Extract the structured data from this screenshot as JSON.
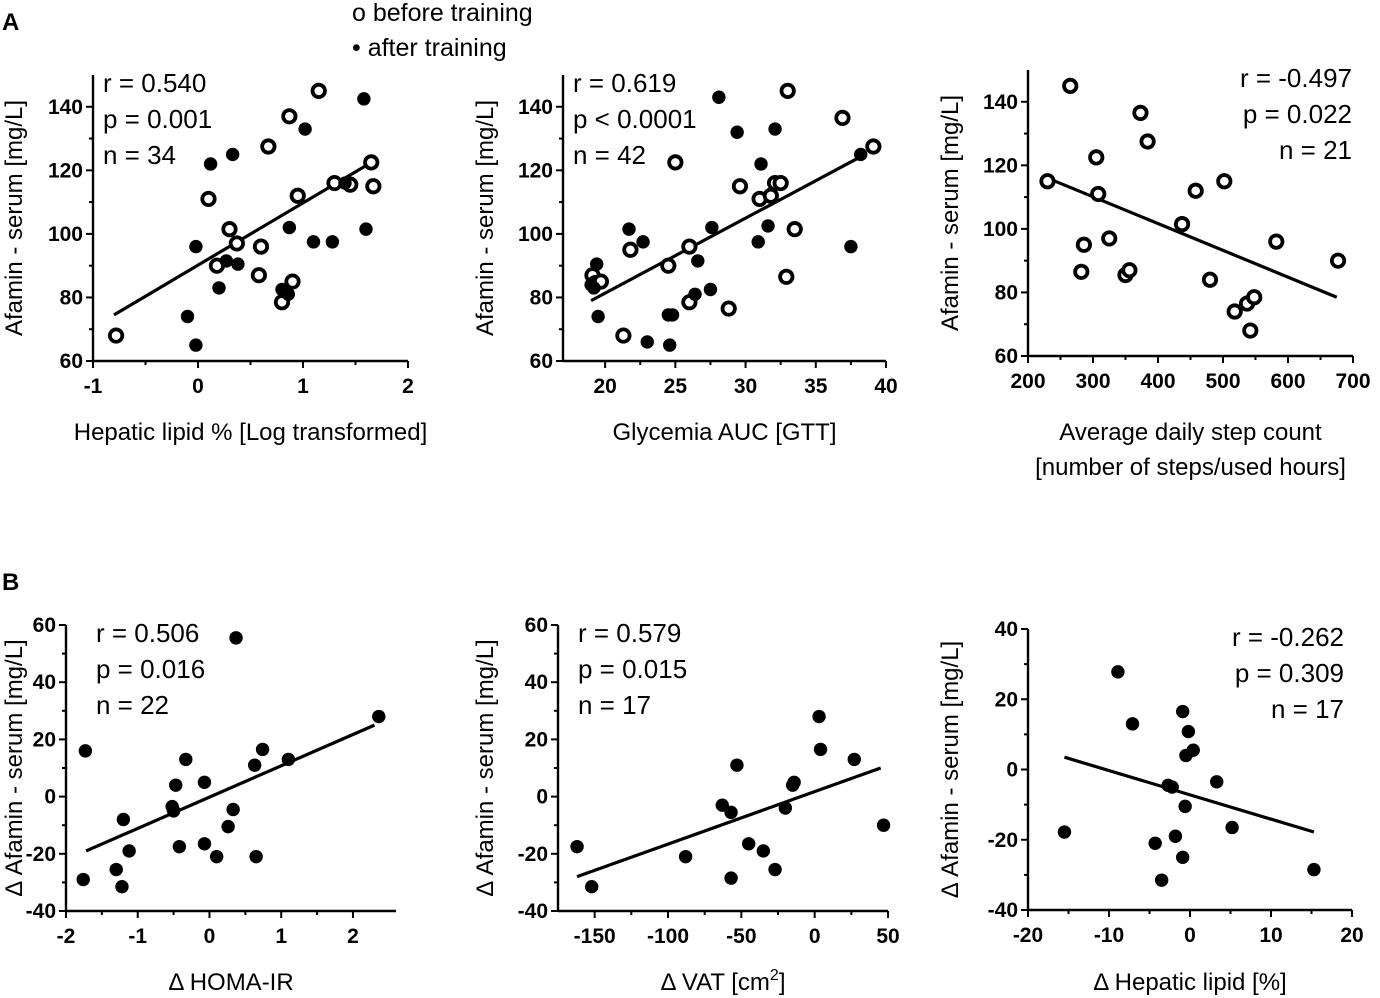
{
  "figure": {
    "panel_labels": [
      "A",
      "B"
    ],
    "legend": {
      "before": "o before training",
      "after": "• after training"
    }
  },
  "chart_data": [
    {
      "id": "a1",
      "type": "scatter",
      "xlabel": "Hepatic lipid % [Log transformed]",
      "ylabel": "Afamin - serum [mg/L]",
      "xlim": [
        -1,
        2
      ],
      "ylim": [
        60,
        150
      ],
      "xticks": [
        "-1",
        "0",
        "1",
        "2"
      ],
      "yticks": [
        "60",
        "80",
        "100",
        "120",
        "140"
      ],
      "stats": [
        "r = 0.540",
        "p = 0.001",
        "n = 34"
      ],
      "regression": [
        [
          -0.8,
          74.5
        ],
        [
          1.6,
          121.5
        ]
      ],
      "series": [
        {
          "name": "before training",
          "marker": "open",
          "points": [
            [
              -0.78,
              68
            ],
            [
              0.1,
              111
            ],
            [
              0.3,
              101.5
            ],
            [
              0.37,
              97
            ],
            [
              0.67,
              127.5
            ],
            [
              0.87,
              137
            ],
            [
              1.15,
              145
            ],
            [
              0.18,
              90
            ],
            [
              0.58,
              87
            ],
            [
              0.6,
              96
            ],
            [
              0.8,
              78.5
            ],
            [
              0.9,
              85
            ],
            [
              0.95,
              112
            ],
            [
              1.3,
              116
            ],
            [
              1.45,
              115.5
            ],
            [
              1.65,
              122.5
            ],
            [
              1.67,
              115
            ]
          ]
        },
        {
          "name": "after training",
          "marker": "filled",
          "points": [
            [
              -0.1,
              74
            ],
            [
              -0.02,
              96
            ],
            [
              -0.02,
              65
            ],
            [
              0.12,
              122
            ],
            [
              0.33,
              125
            ],
            [
              0.2,
              83
            ],
            [
              0.38,
              90.5
            ],
            [
              0.27,
              91.5
            ],
            [
              0.8,
              82.5
            ],
            [
              0.86,
              81
            ],
            [
              0.87,
              102
            ],
            [
              1.02,
              133
            ],
            [
              1.1,
              97.5
            ],
            [
              1.28,
              97.5
            ],
            [
              1.58,
              142.5
            ],
            [
              1.6,
              101.5
            ],
            [
              1.4,
              116
            ]
          ]
        }
      ]
    },
    {
      "id": "a2",
      "type": "scatter",
      "xlabel": "Glycemia AUC [GTT]",
      "ylabel": "Afamin - serum [mg/L]",
      "xlim": [
        17,
        40
      ],
      "ylim": [
        60,
        150
      ],
      "xticks": [
        "20",
        "25",
        "30",
        "35",
        "40"
      ],
      "yticks": [
        "60",
        "80",
        "100",
        "120",
        "140"
      ],
      "stats": [
        "r = 0.619",
        "p < 0.0001",
        "n = 42"
      ],
      "regression": [
        [
          19,
          79
        ],
        [
          38.5,
          125
        ]
      ],
      "series": [
        {
          "name": "before training",
          "marker": "open",
          "points": [
            [
              19.1,
              87
            ],
            [
              19.3,
              84.5
            ],
            [
              19.7,
              85
            ],
            [
              21.3,
              68
            ],
            [
              21.8,
              95
            ],
            [
              24.5,
              90
            ],
            [
              25.0,
              122.5
            ],
            [
              26.0,
              96
            ],
            [
              26.0,
              78.5
            ],
            [
              28.8,
              76.5
            ],
            [
              29.6,
              115
            ],
            [
              31.0,
              111
            ],
            [
              31.8,
              112
            ],
            [
              32.1,
              116
            ],
            [
              32.5,
              116
            ],
            [
              32.9,
              86.5
            ],
            [
              33.0,
              145
            ],
            [
              33.5,
              101.5
            ],
            [
              36.9,
              136.5
            ],
            [
              39.1,
              127.5
            ]
          ]
        },
        {
          "name": "after training",
          "marker": "filled",
          "points": [
            [
              19.0,
              84
            ],
            [
              19.2,
              83
            ],
            [
              19.4,
              90.5
            ],
            [
              19.5,
              74
            ],
            [
              21.7,
              101.5
            ],
            [
              22.7,
              97.5
            ],
            [
              23.0,
              66
            ],
            [
              24.5,
              74.5
            ],
            [
              24.8,
              74.5
            ],
            [
              24.6,
              65
            ],
            [
              26.4,
              81
            ],
            [
              26.6,
              91.5
            ],
            [
              27.5,
              82.5
            ],
            [
              27.6,
              102
            ],
            [
              28.1,
              143
            ],
            [
              29.4,
              132
            ],
            [
              30.9,
              97.5
            ],
            [
              31.1,
              122
            ],
            [
              31.6,
              102.5
            ],
            [
              32.1,
              133
            ],
            [
              37.5,
              96
            ],
            [
              38.2,
              125
            ]
          ]
        }
      ]
    },
    {
      "id": "a3",
      "type": "scatter",
      "xlabel_lines": [
        "Average daily step count",
        "[number of steps/used hours]"
      ],
      "ylabel": "Afamin - serum [mg/L]",
      "xlim": [
        200,
        700
      ],
      "ylim": [
        60,
        150
      ],
      "xticks": [
        "200",
        "300",
        "400",
        "500",
        "600",
        "700"
      ],
      "yticks": [
        "60",
        "80",
        "100",
        "120",
        "140"
      ],
      "stats": [
        "r = -0.497",
        "p = 0.022",
        "n = 21"
      ],
      "regression": [
        [
          230,
          116
        ],
        [
          675,
          78.5
        ]
      ],
      "series": [
        {
          "name": "before training",
          "marker": "open",
          "points": [
            [
              230,
              115
            ],
            [
              265,
              145
            ],
            [
              282,
              86.5
            ],
            [
              286,
              95
            ],
            [
              305,
              122.5
            ],
            [
              308,
              111
            ],
            [
              325,
              97
            ],
            [
              350,
              85.5
            ],
            [
              356,
              87
            ],
            [
              373,
              136.5
            ],
            [
              384,
              127.5
            ],
            [
              437,
              101.5
            ],
            [
              458,
              112
            ],
            [
              480,
              84
            ],
            [
              502,
              115
            ],
            [
              518,
              74
            ],
            [
              537,
              76.5
            ],
            [
              542,
              68
            ],
            [
              548,
              78.5
            ],
            [
              582,
              96
            ],
            [
              677,
              90
            ]
          ]
        }
      ]
    },
    {
      "id": "b1",
      "type": "scatter",
      "xlabel": "Δ HOMA-IR",
      "ylabel": "Δ Afamin - serum [mg/L]",
      "xlim": [
        -2,
        2.6
      ],
      "ylim": [
        -40,
        60
      ],
      "xticks": [
        "-2",
        "-1",
        "0",
        "1",
        "2"
      ],
      "yticks": [
        "-40",
        "-20",
        "0",
        "20",
        "40",
        "60"
      ],
      "stats": [
        "r = 0.506",
        "p = 0.016",
        "n = 22"
      ],
      "regression": [
        [
          -1.72,
          -19
        ],
        [
          2.3,
          25
        ]
      ],
      "series": [
        {
          "name": "after training",
          "marker": "filled",
          "points": [
            [
              -1.73,
              16
            ],
            [
              -1.76,
              -29
            ],
            [
              -1.3,
              -25.5
            ],
            [
              -1.2,
              -8
            ],
            [
              -1.22,
              -31.5
            ],
            [
              -1.12,
              -19
            ],
            [
              -0.52,
              -3.5
            ],
            [
              -0.5,
              -5
            ],
            [
              -0.47,
              4
            ],
            [
              -0.42,
              -17.5
            ],
            [
              -0.33,
              13
            ],
            [
              -0.07,
              5
            ],
            [
              -0.07,
              -16.5
            ],
            [
              0.1,
              -21
            ],
            [
              0.26,
              -10.5
            ],
            [
              0.33,
              -4.5
            ],
            [
              0.37,
              55.5
            ],
            [
              0.63,
              11
            ],
            [
              0.65,
              -21
            ],
            [
              0.74,
              16.5
            ],
            [
              1.1,
              13
            ],
            [
              2.36,
              28
            ]
          ]
        }
      ]
    },
    {
      "id": "b2",
      "type": "scatter",
      "xlabel": "Δ VAT [cm²]",
      "ylabel": "Δ Afamin - serum [mg/L]",
      "xlim": [
        -175,
        50
      ],
      "ylim": [
        -40,
        60
      ],
      "xticks": [
        "-150",
        "-100",
        "-50",
        "0",
        "50"
      ],
      "yticks": [
        "-40",
        "-20",
        "0",
        "20",
        "40",
        "60"
      ],
      "stats": [
        "r = 0.579",
        "p = 0.015",
        "n = 17"
      ],
      "regression": [
        [
          -162,
          -28
        ],
        [
          45,
          10
        ]
      ],
      "series": [
        {
          "name": "after training",
          "marker": "filled",
          "points": [
            [
              -162,
              -17.5
            ],
            [
              -152,
              -31.5
            ],
            [
              -88,
              -21
            ],
            [
              -63,
              -3
            ],
            [
              -57,
              -5.5
            ],
            [
              -57,
              -28.5
            ],
            [
              -53,
              11
            ],
            [
              -45,
              -16.5
            ],
            [
              -35,
              -19
            ],
            [
              -27,
              -25.5
            ],
            [
              -20,
              -4
            ],
            [
              -15,
              4
            ],
            [
              -14,
              5
            ],
            [
              3,
              28
            ],
            [
              4,
              16.5
            ],
            [
              27,
              13
            ],
            [
              47,
              -10
            ]
          ]
        }
      ]
    },
    {
      "id": "b3",
      "type": "scatter",
      "xlabel": "Δ Hepatic lipid [%]",
      "ylabel": "Δ Afamin - serum [mg/L]",
      "xlim": [
        -20,
        20
      ],
      "ylim": [
        -40,
        40
      ],
      "xticks": [
        "-20",
        "-10",
        "0",
        "10",
        "20"
      ],
      "yticks": [
        "-40",
        "-20",
        "0",
        "20",
        "40"
      ],
      "stats": [
        "r = -0.262",
        "p = 0.309",
        "n = 17"
      ],
      "regression": [
        [
          -15.5,
          3.5
        ],
        [
          15.3,
          -17.8
        ]
      ],
      "series": [
        {
          "name": "after training",
          "marker": "filled",
          "points": [
            [
              -15.5,
              -17.8
            ],
            [
              -8.9,
              27.8
            ],
            [
              -7.1,
              13
            ],
            [
              -2.7,
              -4.5
            ],
            [
              -2.2,
              -5
            ],
            [
              -1.8,
              -19
            ],
            [
              -4.3,
              -21
            ],
            [
              -3.5,
              -31.5
            ],
            [
              -0.9,
              16.5
            ],
            [
              -0.9,
              -25
            ],
            [
              -0.6,
              -10.5
            ],
            [
              -0.5,
              4
            ],
            [
              -0.2,
              10.8
            ],
            [
              0.4,
              5.5
            ],
            [
              3.3,
              -3.5
            ],
            [
              5.2,
              -16.5
            ],
            [
              15.3,
              -28.5
            ]
          ]
        }
      ]
    }
  ]
}
